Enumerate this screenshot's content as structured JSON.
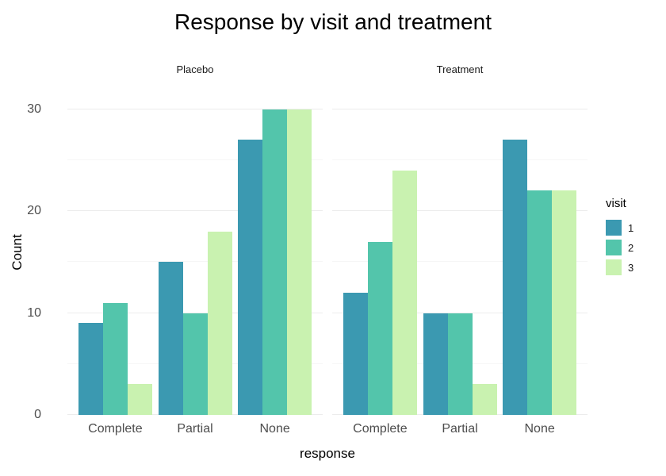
{
  "chart_data": {
    "type": "bar",
    "title": "Response by visit and treatment",
    "xlabel": "response",
    "ylabel": "Count",
    "ylim": [
      0,
      32
    ],
    "yticks": [
      0,
      10,
      20,
      30
    ],
    "yticks_minor": [
      5,
      15,
      25
    ],
    "grid": true,
    "categories": [
      "Complete",
      "Partial",
      "None"
    ],
    "facets": [
      {
        "label": "Placebo",
        "series": [
          {
            "name": "1",
            "values": [
              9,
              15,
              27
            ]
          },
          {
            "name": "2",
            "values": [
              11,
              10,
              30
            ]
          },
          {
            "name": "3",
            "values": [
              3,
              18,
              30
            ]
          }
        ]
      },
      {
        "label": "Treatment",
        "series": [
          {
            "name": "1",
            "values": [
              12,
              10,
              27
            ]
          },
          {
            "name": "2",
            "values": [
              17,
              10,
              22
            ]
          },
          {
            "name": "3",
            "values": [
              24,
              3,
              22
            ]
          }
        ]
      }
    ],
    "colors": [
      "#3B99B1",
      "#53C5AB",
      "#C9F2B0"
    ],
    "legend": {
      "title": "visit",
      "position": "right",
      "entries": [
        {
          "label": "1",
          "color": "#3B99B1"
        },
        {
          "label": "2",
          "color": "#53C5AB"
        },
        {
          "label": "3",
          "color": "#C9F2B0"
        }
      ]
    }
  }
}
